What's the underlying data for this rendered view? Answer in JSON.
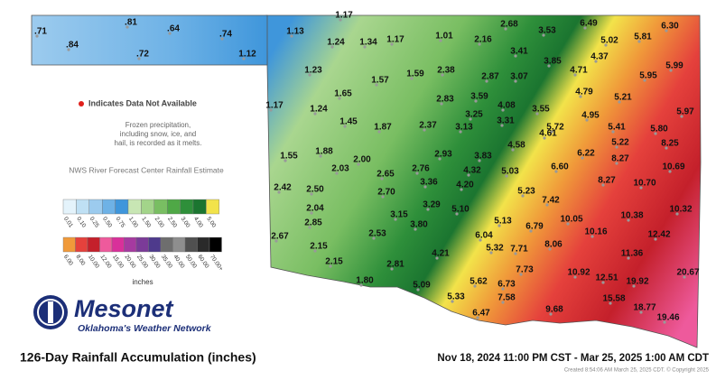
{
  "map": {
    "title": "126-Day Rainfall Accumulation (inches)",
    "period": "Nov 18, 2024 11:00 PM CST - Mar 25, 2025  1:00 AM CDT",
    "credit": "Created 8:54:06 AM March 25, 2025 CDT. © Copyright 2025",
    "brand": {
      "name": "Mesonet",
      "tagline": "Oklahoma's Weather Network"
    },
    "notes": {
      "missing": "Indicates Data Not Available",
      "frozen": [
        "Frozen precipitation,",
        "including snow, ice, and",
        "hail, is recorded as it melts."
      ],
      "source": "NWS River Forecast Center Rainfall Estimate"
    },
    "legend": {
      "unit": "inches",
      "row1": [
        {
          "label": "0.01",
          "color": "#e4f3fb"
        },
        {
          "label": "0.10",
          "color": "#bfe0f4"
        },
        {
          "label": "0.25",
          "color": "#9ccbee"
        },
        {
          "label": "0.50",
          "color": "#6eb2e6"
        },
        {
          "label": "0.75",
          "color": "#3f96db"
        },
        {
          "label": "1.00",
          "color": "#c8e6b4"
        },
        {
          "label": "1.50",
          "color": "#a3d48a"
        },
        {
          "label": "2.00",
          "color": "#79be62"
        },
        {
          "label": "2.50",
          "color": "#4fa846"
        },
        {
          "label": "3.00",
          "color": "#2e8f3a"
        },
        {
          "label": "4.00",
          "color": "#1b7530"
        },
        {
          "label": "5.00",
          "color": "#f2e34a"
        }
      ],
      "row2": [
        {
          "label": "6.00",
          "color": "#f09a3a"
        },
        {
          "label": "8.00",
          "color": "#e5413c"
        },
        {
          "label": "10.00",
          "color": "#c4202b"
        },
        {
          "label": "12.00",
          "color": "#ee5a9c"
        },
        {
          "label": "15.00",
          "color": "#d9309a"
        },
        {
          "label": "20.00",
          "color": "#a63aa0"
        },
        {
          "label": "25.00",
          "color": "#7b3b98"
        },
        {
          "label": "30.00",
          "color": "#4e3a8c"
        },
        {
          "label": "35.00",
          "color": "#6e6e6e"
        },
        {
          "label": "40.00",
          "color": "#8e8e8e"
        },
        {
          "label": "50.00",
          "color": "#505050"
        },
        {
          "label": "60.00",
          "color": "#2a2a2a"
        },
        {
          "label": "70.00+",
          "color": "#000000"
        }
      ]
    },
    "stations": [
      ".71",
      ".84",
      ".81",
      ".64",
      ".72",
      ".74",
      "1.17",
      "1.13",
      "1.24",
      "1.34",
      "1.17",
      "1.01",
      "2.16",
      "2.68",
      "3.53",
      "6.49",
      "6.30",
      "5.02",
      "5.81",
      "1.12",
      "3.41",
      "4.37",
      "3.85",
      "1.23",
      "1.59",
      "2.38",
      "2.87",
      "3.07",
      "1.57",
      "4.71",
      "5.95",
      "5.99",
      "1.65",
      "4.79",
      "5.21",
      "1.17",
      "1.24",
      "2.83",
      "3.59",
      "4.08",
      "3.55",
      "3.25",
      "4.95",
      "5.97",
      "1.45",
      "1.87",
      "2.37",
      "3.13",
      "3.31",
      "5.72",
      "5.41",
      "5.80",
      "4.61",
      "5.22",
      "8.25",
      "1.88",
      "4.58",
      "6.22",
      "1.55",
      "2.00",
      "2.93",
      "3.83",
      "8.27",
      "10.69",
      "2.03",
      "2.76",
      "4.32",
      "5.03",
      "6.60",
      "2.65",
      "3.36",
      "4.20",
      "8.27",
      "10.70",
      "2.42",
      "2.50",
      "2.70",
      "5.23",
      "7.42",
      "3.29",
      "2.04",
      "5.10",
      "10.32",
      "3.15",
      "10.05",
      "10.38",
      "3.80",
      "5.13",
      "6.79",
      "10.16",
      "2.85",
      "2.53",
      "6.04",
      "12.42",
      "2.67",
      "2.15",
      "4.21",
      "5.32",
      "7.71",
      "8.06",
      "11.36",
      "2.15",
      "2.81",
      "7.73",
      "10.92",
      "12.51",
      "19.92",
      "1.80",
      "5.09",
      "5.62",
      "6.73",
      "20.67",
      "5.33",
      "7.58",
      "15.58",
      "18.77",
      "6.47",
      "9.68",
      "19.46"
    ]
  }
}
